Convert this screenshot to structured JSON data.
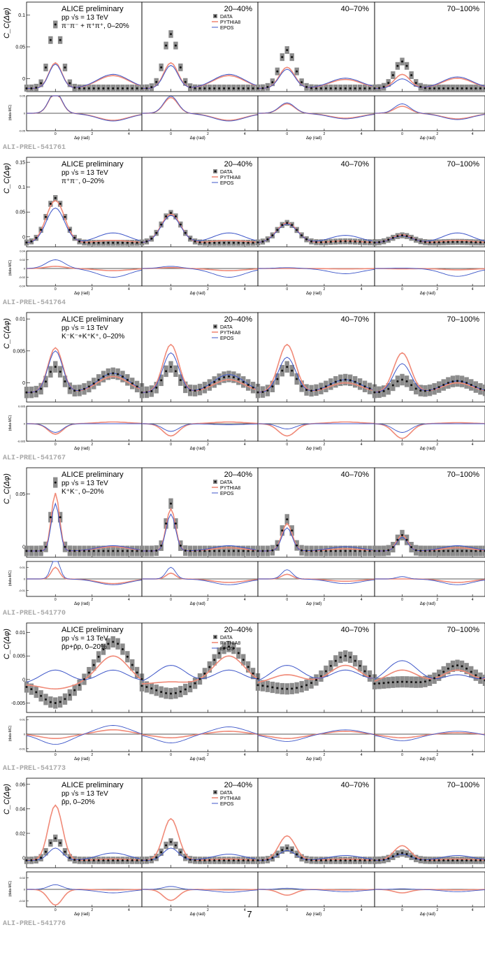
{
  "figure": {
    "page_number": "7",
    "x_axis_label": "Δφ (rad)",
    "main_y_label": "C_C(Δφ)",
    "ratio_y_label": "(data-MC)",
    "collaboration": "ALICE preliminary",
    "energy_text": "pp √s = 13 TeV",
    "centralities": [
      "0–20%",
      "20–40%",
      "40–70%",
      "70–100%"
    ],
    "legend": [
      "DATA",
      "PYTHIA8",
      "EPOS"
    ],
    "colors": {
      "data": "#111111",
      "data_band": "#8c8c8c",
      "pythia": "#f08a78",
      "epos": "#3c55c8",
      "frame": "#000000",
      "ref_label": "#a8a8a8"
    }
  },
  "chart_data": [
    {
      "type": "line",
      "ref": "ALI-PREL-541761",
      "system": "π⁻π⁻ + π⁺π⁺,  0–20%",
      "ylim": [
        -0.02,
        0.12
      ],
      "yticks": [
        "0",
        "0.05",
        "0.1"
      ],
      "ratio_ylim": [
        -0.05,
        0.05
      ],
      "ratio_yticks": [
        "0.05",
        "0",
        "-0.05"
      ],
      "x_range": [
        -1.57,
        4.71
      ],
      "x_ticks": [
        "0",
        "2",
        "4"
      ],
      "data_peak": [
        0.1,
        0.085,
        0.06,
        0.042
      ],
      "data_away": [
        0,
        0,
        0,
        0
      ],
      "pythia_peak": [
        0.04,
        0.04,
        0.033,
        0.022
      ],
      "pythia_away": [
        0.02,
        0.02,
        0.014,
        0.016
      ],
      "epos_peak": [
        0.038,
        0.036,
        0.03,
        0.015
      ],
      "epos_away": [
        0.022,
        0.022,
        0.016,
        0.018
      ],
      "base": -0.015,
      "sigma": 0.35,
      "band": 0.006
    },
    {
      "type": "line",
      "ref": "ALI-PREL-541764",
      "system": "π⁺π⁻,  0–20%",
      "ylim": [
        -0.02,
        0.16
      ],
      "yticks": [
        "0",
        "0.05",
        "0.1",
        "0.15"
      ],
      "ratio_ylim": [
        -0.04,
        0.04
      ],
      "ratio_yticks": [
        "0.04",
        "0.02",
        "0",
        "-0.02",
        "-0.04"
      ],
      "x_range": [
        -1.57,
        4.71
      ],
      "x_ticks": [
        "0",
        "2",
        "4"
      ],
      "data_peak": [
        0.09,
        0.06,
        0.04,
        0.015
      ],
      "data_away": [
        0,
        0,
        0.003,
        0.002
      ],
      "pythia_peak": [
        0.085,
        0.058,
        0.04,
        0.016
      ],
      "pythia_away": [
        0.005,
        0.005,
        0.004,
        0.005
      ],
      "epos_peak": [
        0.07,
        0.055,
        0.038,
        0.014
      ],
      "epos_away": [
        0.02,
        0.02,
        0.015,
        0.02
      ],
      "base": -0.012,
      "sigma": 0.5,
      "band": 0.006
    },
    {
      "type": "line",
      "ref": "ALI-PREL-541767",
      "system": "K⁻K⁻+K⁺K⁺,  0–20%",
      "ylim": [
        -0.003,
        0.011
      ],
      "yticks": [
        "0",
        "0.005",
        "0.01"
      ],
      "ratio_ylim": [
        -0.005,
        0.005
      ],
      "ratio_yticks": [
        "0.005",
        "0",
        "-0.005"
      ],
      "x_range": [
        -1.57,
        4.71
      ],
      "x_ticks": [
        "0",
        "2",
        "4"
      ],
      "data_peak": [
        0.004,
        0.004,
        0.004,
        0.002
      ],
      "data_away": [
        0.003,
        0.0025,
        0.002,
        0.0018
      ],
      "pythia_peak": [
        0.007,
        0.0075,
        0.0075,
        0.0062
      ],
      "pythia_away": [
        0.0025,
        0.002,
        0.0015,
        0.0015
      ],
      "epos_peak": [
        0.0065,
        0.0062,
        0.0055,
        0.0045
      ],
      "epos_away": [
        0.003,
        0.0028,
        0.002,
        0.0018
      ],
      "base": -0.0015,
      "sigma": 0.4,
      "band": 0.0009
    },
    {
      "type": "line",
      "ref": "ALI-PREL-541770",
      "system": "K⁺K⁻,  0–20%",
      "ylim": [
        -0.01,
        0.075
      ],
      "yticks": [
        "0",
        "0.05"
      ],
      "ratio_ylim": [
        -0.015,
        0.015
      ],
      "ratio_yticks": [
        "0.01",
        "0",
        "-0.01"
      ],
      "x_range": [
        -1.57,
        4.71
      ],
      "x_ticks": [
        "0",
        "2",
        "4"
      ],
      "data_peak": [
        0.065,
        0.045,
        0.03,
        0.015
      ],
      "data_away": [
        0,
        0,
        0,
        0
      ],
      "pythia_peak": [
        0.055,
        0.04,
        0.026,
        0.015
      ],
      "pythia_away": [
        0.004,
        0.003,
        0.002,
        0.003
      ],
      "epos_peak": [
        0.045,
        0.035,
        0.022,
        0.013
      ],
      "epos_away": [
        0.005,
        0.005,
        0.004,
        0.005
      ],
      "base": -0.004,
      "sigma": 0.22,
      "band": 0.005
    },
    {
      "type": "line",
      "ref": "ALI-PREL-541773",
      "system": "p̄p+p̄p,  0–20%",
      "ylim": [
        -0.007,
        0.012
      ],
      "yticks": [
        "-0.005",
        "0",
        "0.005",
        "0.01"
      ],
      "ratio_ylim": [
        -0.012,
        0.012
      ],
      "ratio_yticks": [
        "0.01",
        "0",
        "-0.01"
      ],
      "x_range": [
        -1.57,
        4.71
      ],
      "x_ticks": [
        "0",
        "2",
        "4"
      ],
      "data_peak": [
        -0.004,
        -0.002,
        -0.001,
        0.0005
      ],
      "data_away": [
        0.009,
        0.008,
        0.006,
        0.004
      ],
      "pythia_peak": [
        -0.001,
        0.0005,
        0.002,
        0.003
      ],
      "pythia_away": [
        0.006,
        0.006,
        0.004,
        0.003
      ],
      "epos_peak": [
        0.003,
        0.004,
        0.004,
        0.005
      ],
      "epos_away": [
        0.003,
        0.003,
        0.003,
        0.002
      ],
      "base": -0.001,
      "sigma": 0.8,
      "band": 0.0012
    },
    {
      "type": "line",
      "ref": "ALI-PREL-541776",
      "system": "p̄p,  0–20%",
      "ylim": [
        -0.008,
        0.065
      ],
      "yticks": [
        "0",
        "0.02",
        "0.04",
        "0.06"
      ],
      "ratio_ylim": [
        -0.03,
        0.03
      ],
      "ratio_yticks": [
        "0.02",
        "0",
        "-0.02"
      ],
      "x_range": [
        -1.57,
        4.71
      ],
      "x_ticks": [
        "0",
        "2",
        "4"
      ],
      "data_peak": [
        0.018,
        0.015,
        0.01,
        0.006
      ],
      "data_away": [
        0,
        0,
        0,
        0
      ],
      "pythia_peak": [
        0.045,
        0.034,
        0.02,
        0.012
      ],
      "pythia_away": [
        0.001,
        0.001,
        0.001,
        0.001
      ],
      "epos_peak": [
        0.01,
        0.01,
        0.008,
        0.005
      ],
      "epos_away": [
        0.006,
        0.005,
        0.004,
        0.004
      ],
      "base": -0.002,
      "sigma": 0.38,
      "band": 0.003
    }
  ]
}
